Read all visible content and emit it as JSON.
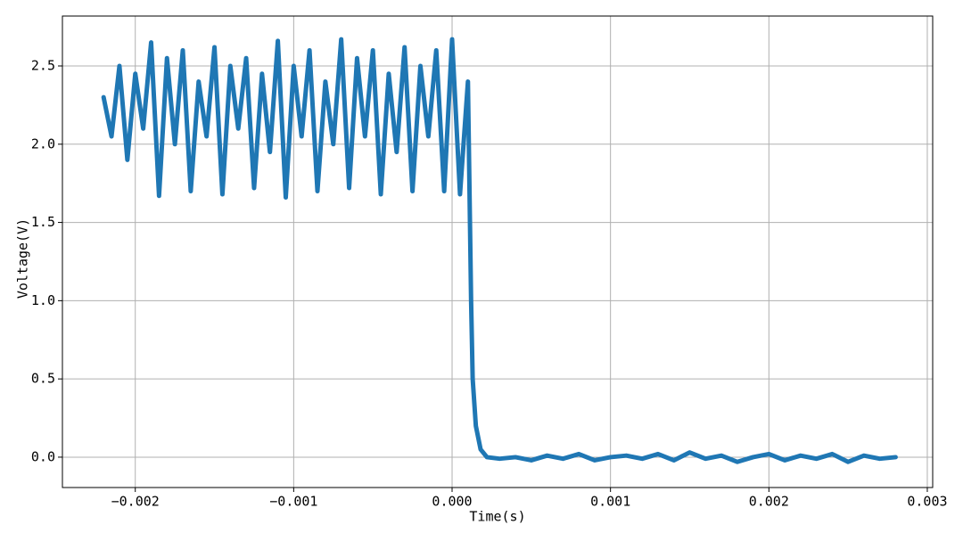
{
  "chart_data": {
    "type": "line",
    "xlabel": "Time(s)",
    "ylabel": "Voltage(V)",
    "xlim": [
      -0.00246,
      0.003034
    ],
    "ylim": [
      -0.194,
      2.819
    ],
    "xticks": [
      {
        "value": -0.002,
        "label": "−0.002"
      },
      {
        "value": -0.001,
        "label": "−0.001"
      },
      {
        "value": 0,
        "label": "0.000"
      },
      0.001,
      0.002,
      0.003
    ],
    "yticks": [
      {
        "value": 0,
        "label": "0.0"
      },
      0.5,
      {
        "value": 1,
        "label": "1.0"
      },
      1.5,
      {
        "value": 2,
        "label": "2.0"
      },
      2.5
    ],
    "grid": true,
    "series": [
      {
        "color": "#1f77b4",
        "x": [
          -0.0022,
          -0.00215,
          -0.0021,
          -0.00205,
          -0.002,
          -0.00195,
          -0.0019,
          -0.00185,
          -0.0018,
          -0.00175,
          -0.0017,
          -0.00165,
          -0.0016,
          -0.00155,
          -0.0015,
          -0.00145,
          -0.0014,
          -0.00135,
          -0.0013,
          -0.00125,
          -0.0012,
          -0.00115,
          -0.0011,
          -0.00105,
          -0.001,
          -0.00095,
          -0.0009,
          -0.00085,
          -0.0008,
          -0.00075,
          -0.0007,
          -0.00065,
          -0.0006,
          -0.00055,
          -0.0005,
          -0.00045,
          -0.0004,
          -0.00035,
          -0.0003,
          -0.00025,
          -0.0002,
          -0.00015,
          -0.0001,
          -5e-05,
          0,
          5e-05,
          0.0001,
          0.00011,
          0.00012,
          0.00013,
          0.00015,
          0.00018,
          0.00022,
          0.0003,
          0.0004,
          0.0005,
          0.0006,
          0.0007,
          0.0008,
          0.0009,
          0.001,
          0.0011,
          0.0012,
          0.0013,
          0.0014,
          0.0015,
          0.0016,
          0.0017,
          0.0018,
          0.0019,
          0.002,
          0.0021,
          0.0022,
          0.0023,
          0.0024,
          0.0025,
          0.0026,
          0.0027,
          0.0028
        ],
        "values": [
          2.3,
          2.05,
          2.5,
          1.9,
          2.45,
          2.1,
          2.65,
          1.67,
          2.55,
          2.0,
          2.6,
          1.7,
          2.4,
          2.05,
          2.62,
          1.68,
          2.5,
          2.1,
          2.55,
          1.72,
          2.45,
          1.95,
          2.66,
          1.66,
          2.5,
          2.05,
          2.6,
          1.7,
          2.4,
          2.0,
          2.67,
          1.72,
          2.55,
          2.05,
          2.6,
          1.68,
          2.45,
          1.95,
          2.62,
          1.7,
          2.5,
          2.05,
          2.6,
          1.7,
          2.67,
          1.68,
          2.4,
          1.7,
          1.0,
          0.5,
          0.2,
          0.05,
          0.0,
          -0.01,
          0.0,
          -0.02,
          0.01,
          -0.01,
          0.02,
          -0.02,
          0.0,
          0.01,
          -0.01,
          0.02,
          -0.02,
          0.03,
          -0.01,
          0.01,
          -0.03,
          0.0,
          0.02,
          -0.02,
          0.01,
          -0.01,
          0.02,
          -0.03,
          0.01,
          -0.01,
          0.0
        ]
      }
    ]
  }
}
